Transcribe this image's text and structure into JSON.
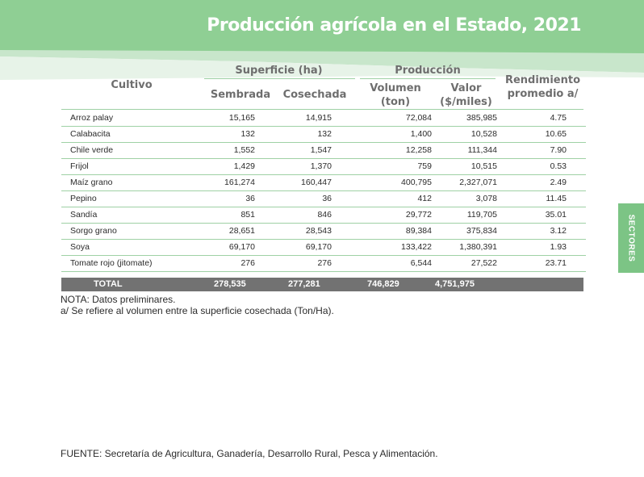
{
  "banner": {
    "title": "Producción agrícola en el Estado, 2021",
    "color": "#8fcf94"
  },
  "side_tab": {
    "label": "SECTORES",
    "color": "#7cc485"
  },
  "table": {
    "header": {
      "cultivo": "Cultivo",
      "superficie": "Superficie (ha)",
      "sembrada": "Sembrada",
      "cosechada": "Cosechada",
      "produccion": "Producción",
      "volumen_line1": "Volumen",
      "volumen_line2": "(ton)",
      "valor_line1": "Valor",
      "valor_line2": "($/miles)",
      "rendimiento_line1": "Rendimiento",
      "rendimiento_line2": "promedio a/"
    },
    "rows": [
      {
        "cultivo": "Arroz palay",
        "sembrada": "15,165",
        "cosechada": "14,915",
        "volumen": "72,084",
        "valor": "385,985",
        "rendimiento": "4.75"
      },
      {
        "cultivo": "Calabacita",
        "sembrada": "132",
        "cosechada": "132",
        "volumen": "1,400",
        "valor": "10,528",
        "rendimiento": "10.65"
      },
      {
        "cultivo": "Chile verde",
        "sembrada": "1,552",
        "cosechada": "1,547",
        "volumen": "12,258",
        "valor": "111,344",
        "rendimiento": "7.90"
      },
      {
        "cultivo": "Frijol",
        "sembrada": "1,429",
        "cosechada": "1,370",
        "volumen": "759",
        "valor": "10,515",
        "rendimiento": "0.53"
      },
      {
        "cultivo": "Maíz grano",
        "sembrada": "161,274",
        "cosechada": "160,447",
        "volumen": "400,795",
        "valor": "2,327,071",
        "rendimiento": "2.49"
      },
      {
        "cultivo": "Pepino",
        "sembrada": "36",
        "cosechada": "36",
        "volumen": "412",
        "valor": "3,078",
        "rendimiento": "11.45"
      },
      {
        "cultivo": "Sandía",
        "sembrada": "851",
        "cosechada": "846",
        "volumen": "29,772",
        "valor": "119,705",
        "rendimiento": "35.01"
      },
      {
        "cultivo": "Sorgo grano",
        "sembrada": "28,651",
        "cosechada": "28,543",
        "volumen": "89,384",
        "valor": "375,834",
        "rendimiento": "3.12"
      },
      {
        "cultivo": "Soya",
        "sembrada": "69,170",
        "cosechada": "69,170",
        "volumen": "133,422",
        "valor": "1,380,391",
        "rendimiento": "1.93"
      },
      {
        "cultivo": "Tomate rojo (jitomate)",
        "sembrada": "276",
        "cosechada": "276",
        "volumen": "6,544",
        "valor": "27,522",
        "rendimiento": "23.71"
      }
    ],
    "total": {
      "label": "TOTAL",
      "sembrada": "278,535",
      "cosechada": "277,281",
      "volumen": "746,829",
      "valor": "4,751,975"
    }
  },
  "notes": {
    "nota": "NOTA: Datos preliminares.",
    "footnote": "a/ Se refiere al volumen entre la superficie cosechada (Ton/Ha).",
    "fuente": "FUENTE: Secretaría de Agricultura, Ganadería, Desarrollo Rural, Pesca y Alimentación."
  }
}
